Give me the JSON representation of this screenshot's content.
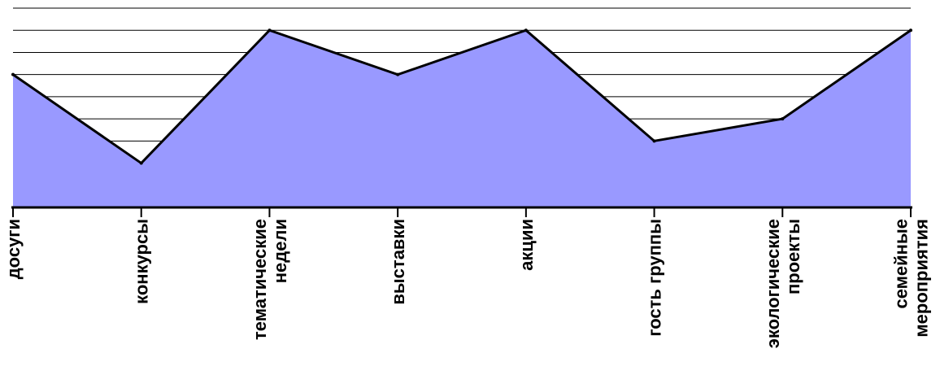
{
  "chart_data": {
    "type": "area",
    "categories": [
      "досуги",
      "конкурсы",
      "тематические недели",
      "выставки",
      "акции",
      "гость группы",
      "экологические проекты",
      "семейные мероприятия"
    ],
    "category_lines": [
      [
        "досуги"
      ],
      [
        "конкурсы"
      ],
      [
        "тематические",
        "недели"
      ],
      [
        "выставки"
      ],
      [
        "акции"
      ],
      [
        "гость группы"
      ],
      [
        "экологические",
        "проекты"
      ],
      [
        "семейные",
        "мероприятия"
      ]
    ],
    "values": [
      6,
      2,
      8,
      6,
      8,
      3,
      4,
      8
    ],
    "ylim": [
      0,
      9
    ],
    "grid": true,
    "fill_color": "#9999ff",
    "line_color": "#000000",
    "grid_color": "#000000",
    "title": "",
    "xlabel": "",
    "ylabel": ""
  }
}
